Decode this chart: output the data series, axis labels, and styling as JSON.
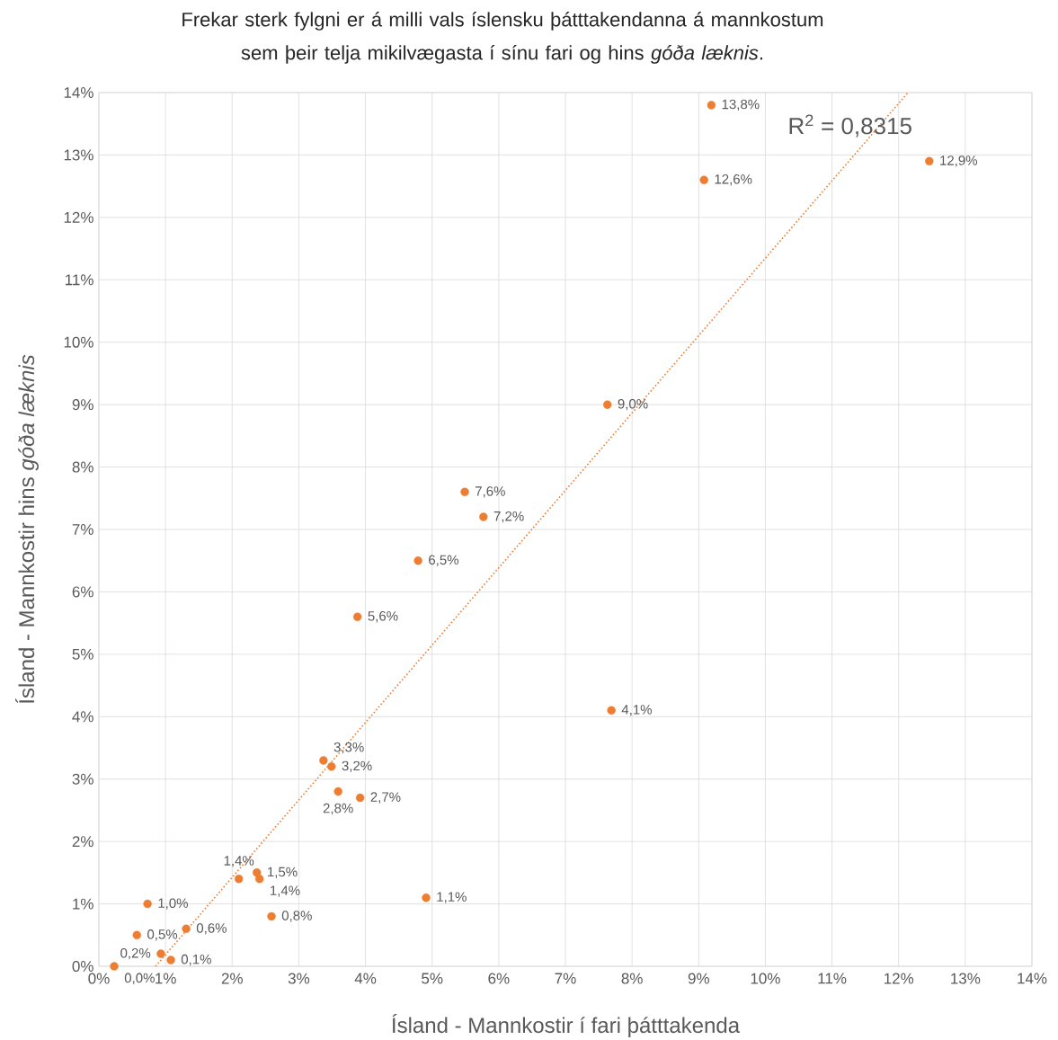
{
  "chart_data": {
    "type": "scatter",
    "title": "Frekar sterk fylgni er á milli vals íslensku þátttakendanna á mannkostum sem þeir telja mikilvægasta í sínu fari og hins *góða læknis*.",
    "xlabel": "Ísland - Mannkostir í fari þátttakenda",
    "ylabel": "Ísland - Mannkostir hins *góða læknis*",
    "xlim": [
      0,
      14
    ],
    "ylim": [
      0,
      14
    ],
    "xticks": [
      {
        "value": 0,
        "label": "0%"
      },
      {
        "value": 1,
        "label": "1%"
      },
      {
        "value": 2,
        "label": "2%"
      },
      {
        "value": 3,
        "label": "3%"
      },
      {
        "value": 4,
        "label": "4%"
      },
      {
        "value": 5,
        "label": "5%"
      },
      {
        "value": 6,
        "label": "6%"
      },
      {
        "value": 7,
        "label": "7%"
      },
      {
        "value": 8,
        "label": "8%"
      },
      {
        "value": 9,
        "label": "9%"
      },
      {
        "value": 10,
        "label": "10%"
      },
      {
        "value": 11,
        "label": "11%"
      },
      {
        "value": 12,
        "label": "12%"
      },
      {
        "value": 13,
        "label": "13%"
      },
      {
        "value": 14,
        "label": "14%"
      }
    ],
    "yticks": [
      {
        "value": 0,
        "label": "0%"
      },
      {
        "value": 1,
        "label": "1%"
      },
      {
        "value": 2,
        "label": "2%"
      },
      {
        "value": 3,
        "label": "3%"
      },
      {
        "value": 4,
        "label": "4%"
      },
      {
        "value": 5,
        "label": "5%"
      },
      {
        "value": 6,
        "label": "6%"
      },
      {
        "value": 7,
        "label": "7%"
      },
      {
        "value": 8,
        "label": "8%"
      },
      {
        "value": 9,
        "label": "9%"
      },
      {
        "value": 10,
        "label": "10%"
      },
      {
        "value": 11,
        "label": "11%"
      },
      {
        "value": 12,
        "label": "12%"
      },
      {
        "value": 13,
        "label": "13%"
      },
      {
        "value": 14,
        "label": "14%"
      }
    ],
    "grid": true,
    "series": [
      {
        "color": "#ed7d31",
        "marker": "circle",
        "x": [
          9.19,
          12.46,
          9.08,
          7.63,
          5.49,
          5.77,
          4.79,
          3.88,
          7.69,
          3.37,
          3.49,
          3.59,
          3.92,
          2.37,
          2.41,
          2.1,
          0.73,
          4.91,
          2.59,
          0.57,
          1.31,
          0.93,
          1.08,
          0.23
        ],
        "values": [
          13.8,
          12.9,
          12.6,
          9.0,
          7.6,
          7.2,
          6.5,
          5.6,
          4.1,
          3.3,
          3.2,
          2.8,
          2.7,
          1.5,
          1.4,
          1.4,
          1.0,
          1.1,
          0.8,
          0.5,
          0.6,
          0.2,
          0.1,
          0.0
        ],
        "value_labels": [
          "13,8%",
          "12,9%",
          "12,6%",
          "9,0%",
          "7,6%",
          "7,2%",
          "6,5%",
          "5,6%",
          "4,1%",
          "3,3%",
          "3,2%",
          "2,8%",
          "2,7%",
          "1,5%",
          "1,4%",
          "1,4%",
          "1,0%",
          "1,1%",
          "0,8%",
          "0,5%",
          "0,6%",
          "0,2%",
          "0,1%",
          "0,0%"
        ]
      },
      {
        "type": "line",
        "color": "#ed7d31",
        "marker": "none",
        "line_style": "dotted",
        "x": [
          0.85,
          12.14
        ],
        "values": [
          0,
          14
        ]
      }
    ],
    "annotations": [
      "R$^{2}$ = 0,8315"
    ]
  }
}
